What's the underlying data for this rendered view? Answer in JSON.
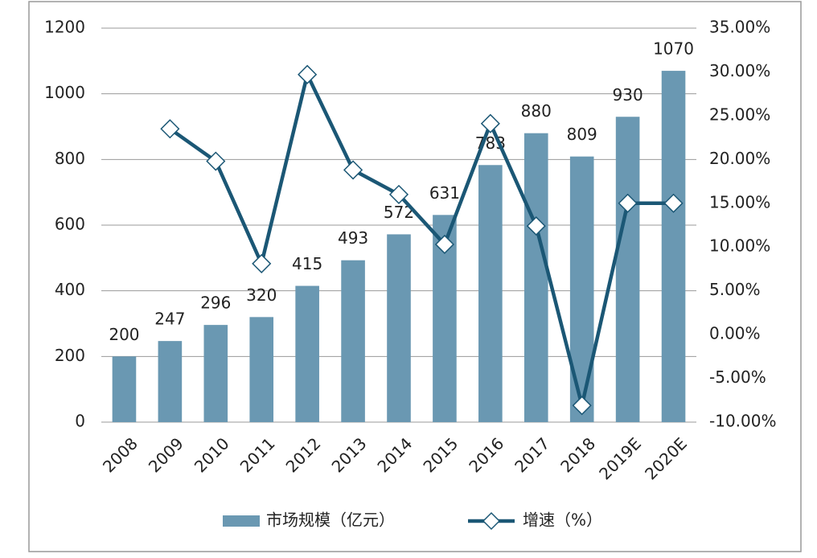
{
  "chart_data": {
    "type": "bar",
    "categories": [
      "2008",
      "2009",
      "2010",
      "2011",
      "2012",
      "2013",
      "2014",
      "2015",
      "2016",
      "2017",
      "2018",
      "2019E",
      "2020E"
    ],
    "series": [
      {
        "name": "市场规模（亿元）",
        "type": "bar",
        "color": "#6a98b2",
        "values": [
          200,
          247,
          296,
          320,
          415,
          493,
          572,
          631,
          783,
          880,
          809,
          930,
          1070
        ]
      },
      {
        "name": "增速（%）",
        "type": "line",
        "axis": "y2",
        "color": "#1b5775",
        "values": [
          null,
          23.5,
          19.8,
          8.1,
          29.7,
          18.8,
          16.0,
          10.3,
          24.1,
          12.4,
          -8.1,
          15.0,
          15.0
        ]
      }
    ],
    "ylim": [
      0,
      1200
    ],
    "yticks": [
      0,
      200,
      400,
      600,
      800,
      1000,
      1200
    ],
    "y2lim": [
      -10,
      35
    ],
    "y2ticks": [
      {
        "value": -10,
        "label": "-10.00%"
      },
      {
        "value": -5,
        "label": "-5.00%"
      },
      {
        "value": 0,
        "label": "0.00%"
      },
      {
        "value": 5,
        "label": "5.00%"
      },
      {
        "value": 10,
        "label": "10.00%"
      },
      {
        "value": 15,
        "label": "15.00%"
      },
      {
        "value": 20,
        "label": "20.00%"
      },
      {
        "value": 25,
        "label": "25.00%"
      },
      {
        "value": 30,
        "label": "30.00%"
      },
      {
        "value": 35,
        "label": "35.00%"
      }
    ],
    "grid": true,
    "legend": "bottom"
  }
}
